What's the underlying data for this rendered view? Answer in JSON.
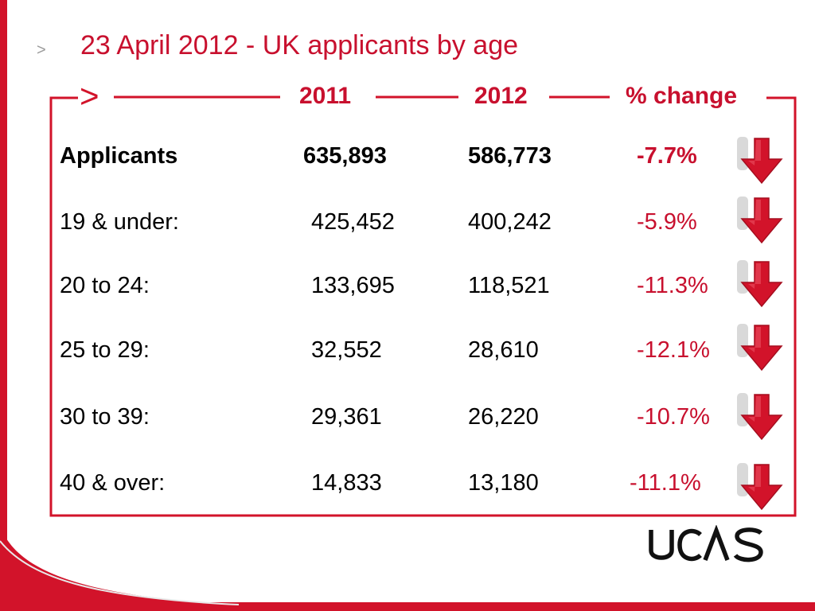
{
  "slide": {
    "title": "23 April 2012 -  UK applicants by age"
  },
  "table": {
    "headers": [
      "2011",
      "2012",
      "% change"
    ],
    "rows": [
      {
        "label": "Applicants",
        "y2011": "635,893",
        "y2012": "586,773",
        "change": "-7.7%"
      },
      {
        "label": "19 & under:",
        "y2011": "425,452",
        "y2012": "400,242",
        "change": "-5.9%"
      },
      {
        "label": "20 to 24:",
        "y2011": "133,695",
        "y2012": "118,521",
        "change": "-11.3%"
      },
      {
        "label": "25 to 29:",
        "y2011": "32,552",
        "y2012": "28,610",
        "change": "-12.1%"
      },
      {
        "label": "30 to 39:",
        "y2011": "29,361",
        "y2012": "26,220",
        "change": "-10.7%"
      },
      {
        "label": "40 & over:",
        "y2011": "14,833",
        "y2012": "13,180",
        "change": "-11.1%"
      }
    ]
  },
  "logo": {
    "text": "UCAS"
  },
  "colors": {
    "accent": "#c8102e",
    "frame": "#d2132a",
    "text": "#000000"
  },
  "icons": {
    "title_marker": "chevron-right-icon",
    "frame_marker": "chevron-right-icon",
    "change": "red-down-arrow-icon"
  }
}
